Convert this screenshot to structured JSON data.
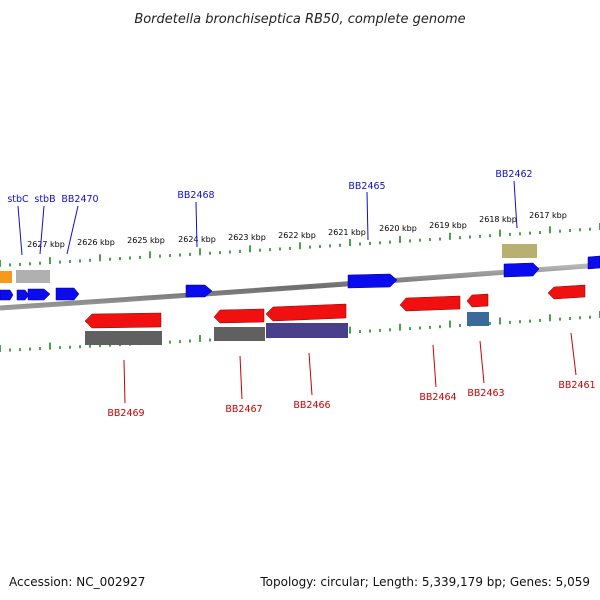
{
  "title": "Bordetella bronchiseptica RB50, complete genome",
  "footer": {
    "accession": "Accession: NC_002927",
    "summary": "Topology: circular; Length: 5,339,179 bp; Genes: 5,059"
  },
  "scale_labels": [
    "2627 kbp",
    "2626 kbp",
    "2625 kbp",
    "2624 kbp",
    "2623 kbp",
    "2622 kbp",
    "2621 kbp",
    "2620 kbp",
    "2619 kbp",
    "2618 kbp",
    "2617 kbp"
  ],
  "genes_top": [
    "stbC",
    "stbB",
    "BB2470",
    "BB2468",
    "BB2465",
    "BB2462"
  ],
  "genes_bottom": [
    "BB2469",
    "BB2467",
    "BB2466",
    "BB2464",
    "BB2463",
    "BB2461"
  ],
  "colors": {
    "forward_strand": "#0b0bf0",
    "reverse_strand": "#f01010",
    "backbone": "#8a8a8a",
    "ticks": "#1a8a1a",
    "label_top": "#1010c8",
    "label_bottom": "#c80000",
    "orange_feature": "#f59a1a",
    "gray_feature": "#b0b0b0",
    "khaki_feature": "#b8b070",
    "darkgray_feature": "#606060",
    "purple_feature": "#4a3f8a",
    "steelblue_feature": "#3a6a9a"
  }
}
